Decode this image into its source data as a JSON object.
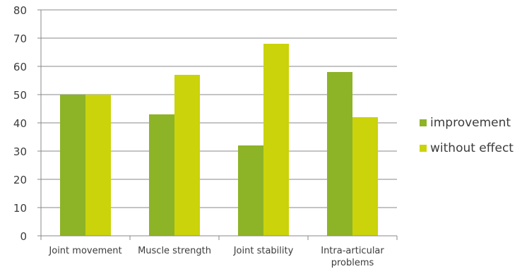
{
  "chart_data": {
    "type": "bar",
    "title": "",
    "xlabel": "",
    "ylabel": "",
    "ylim": [
      0,
      80
    ],
    "yticks": [
      0,
      10,
      20,
      30,
      40,
      50,
      60,
      70,
      80
    ],
    "grid": true,
    "legend_position": "right",
    "categories": [
      [
        "Joint movement"
      ],
      [
        "Muscle strength"
      ],
      [
        "Joint stability"
      ],
      [
        "Intra-articular",
        "problems"
      ]
    ],
    "series": [
      {
        "name": "improvement",
        "color": "#8db327",
        "values": [
          50,
          43,
          32,
          58
        ]
      },
      {
        "name": "without effect",
        "color": "#cbd30a",
        "values": [
          50,
          57,
          68,
          42
        ]
      }
    ]
  }
}
